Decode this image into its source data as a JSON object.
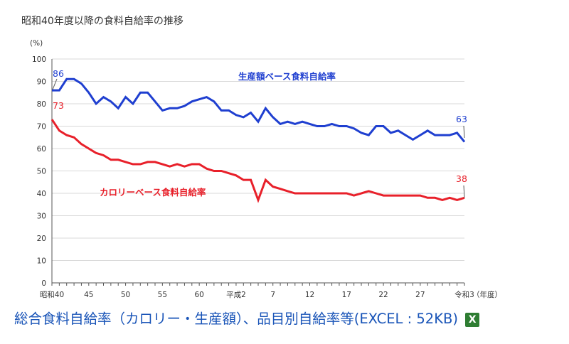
{
  "chart_data": {
    "type": "line",
    "title": "昭和40年度以降の食料自給率の推移",
    "ylabel": "(%)",
    "xlabel": "（年度）",
    "ylim": [
      0,
      100
    ],
    "yticks": [
      0,
      10,
      20,
      30,
      40,
      50,
      60,
      70,
      80,
      90,
      100
    ],
    "x_range": [
      1965,
      2021
    ],
    "xticks": [
      {
        "year": 1965,
        "label": "昭和40"
      },
      {
        "year": 1970,
        "label": "45"
      },
      {
        "year": 1975,
        "label": "50"
      },
      {
        "year": 1980,
        "label": "55"
      },
      {
        "year": 1985,
        "label": "60"
      },
      {
        "year": 1990,
        "label": "平成2"
      },
      {
        "year": 1995,
        "label": "7"
      },
      {
        "year": 2000,
        "label": "12"
      },
      {
        "year": 2005,
        "label": "17"
      },
      {
        "year": 2010,
        "label": "22"
      },
      {
        "year": 2015,
        "label": "27"
      },
      {
        "year": 2021,
        "label": "令和3"
      }
    ],
    "series": [
      {
        "name": "生産額ベース食料自給率",
        "color": "#1f3fd0",
        "start_label": "86",
        "end_label": "63",
        "x": [
          1965,
          1966,
          1967,
          1968,
          1969,
          1970,
          1971,
          1972,
          1973,
          1974,
          1975,
          1976,
          1977,
          1978,
          1979,
          1980,
          1981,
          1982,
          1983,
          1984,
          1985,
          1986,
          1987,
          1988,
          1989,
          1990,
          1991,
          1992,
          1993,
          1994,
          1995,
          1996,
          1997,
          1998,
          1999,
          2000,
          2001,
          2002,
          2003,
          2004,
          2005,
          2006,
          2007,
          2008,
          2009,
          2010,
          2011,
          2012,
          2013,
          2014,
          2015,
          2016,
          2017,
          2018,
          2019,
          2020,
          2021
        ],
        "values": [
          86,
          86,
          91,
          91,
          89,
          85,
          80,
          83,
          81,
          78,
          83,
          80,
          85,
          85,
          81,
          77,
          78,
          78,
          79,
          81,
          82,
          83,
          81,
          77,
          77,
          75,
          74,
          76,
          72,
          78,
          74,
          71,
          72,
          71,
          72,
          71,
          70,
          70,
          71,
          70,
          70,
          69,
          67,
          66,
          70,
          70,
          67,
          68,
          66,
          64,
          66,
          68,
          66,
          66,
          66,
          67,
          63
        ]
      },
      {
        "name": "カロリーベース食料自給率",
        "color": "#e8202a",
        "start_label": "73",
        "end_label": "38",
        "x": [
          1965,
          1966,
          1967,
          1968,
          1969,
          1970,
          1971,
          1972,
          1973,
          1974,
          1975,
          1976,
          1977,
          1978,
          1979,
          1980,
          1981,
          1982,
          1983,
          1984,
          1985,
          1986,
          1987,
          1988,
          1989,
          1990,
          1991,
          1992,
          1993,
          1994,
          1995,
          1996,
          1997,
          1998,
          1999,
          2000,
          2001,
          2002,
          2003,
          2004,
          2005,
          2006,
          2007,
          2008,
          2009,
          2010,
          2011,
          2012,
          2013,
          2014,
          2015,
          2016,
          2017,
          2018,
          2019,
          2020,
          2021
        ],
        "values": [
          73,
          68,
          66,
          65,
          62,
          60,
          58,
          57,
          55,
          55,
          54,
          53,
          53,
          54,
          54,
          53,
          52,
          53,
          52,
          53,
          53,
          51,
          50,
          50,
          49,
          48,
          46,
          46,
          37,
          46,
          43,
          42,
          41,
          40,
          40,
          40,
          40,
          40,
          40,
          40,
          40,
          39,
          40,
          41,
          40,
          39,
          39,
          39,
          39,
          39,
          39,
          38,
          38,
          37,
          38,
          37,
          38
        ]
      }
    ]
  },
  "caption": {
    "link_text": "総合食料自給率（カロリー・生産額）、品目別自給率等(EXCEL : 52KB)",
    "icon": "excel-icon",
    "icon_glyph": "X"
  }
}
